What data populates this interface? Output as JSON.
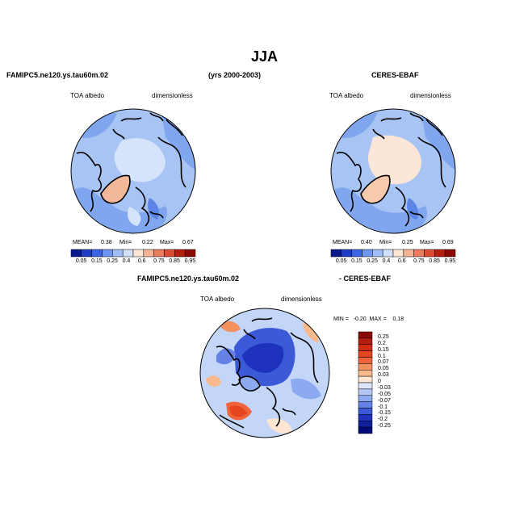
{
  "title": "JJA",
  "panels": [
    {
      "title_left": "FAMIPC5.ne120.ys.tau60m.02",
      "title_center": "(yrs 2000-2003)",
      "field": "TOA albedo",
      "units": "dimensionless",
      "stats": {
        "mean_label": "MEAN=",
        "mean": "0.38",
        "min_label": "Min=",
        "min": "0.22",
        "max_label": "Max=",
        "max": "0.67"
      }
    },
    {
      "title_right": "CERES-EBAF",
      "field": "TOA albedo",
      "units": "dimensionless",
      "stats": {
        "mean_label": "MEAN=",
        "mean": "0.40",
        "min_label": "Min=",
        "min": "0.25",
        "max_label": "Max=",
        "max": "0.69"
      }
    },
    {
      "title_left": "FAMIPC5.ne120.ys.tau60m.02",
      "title_right": "- CERES-EBAF",
      "field": "TOA albedo",
      "units": "dimensionless",
      "stats_text": "MIN =   -0.20  MAX =    0.18"
    }
  ],
  "colorbar_top": {
    "labels": [
      "0.05",
      "0.15",
      "0.25",
      "0.4",
      "0.6",
      "0.75",
      "0.85",
      "0.95"
    ],
    "colors": [
      "#0a1a8c",
      "#1e3cc8",
      "#3c64e6",
      "#6e96f0",
      "#a0bef5",
      "#d2e1fa",
      "#fbe6d7",
      "#f5b496",
      "#eb7d5f",
      "#dc4b32",
      "#b41e0f",
      "#8c0a05"
    ]
  },
  "colorbar_diff": {
    "labels": [
      "0.25",
      "0.2",
      "0.15",
      "0.1",
      "0.07",
      "0.05",
      "0.03",
      "0",
      "-0.03",
      "-0.05",
      "-0.07",
      "-0.1",
      "-0.15",
      "-0.2",
      "-0.25"
    ],
    "colors": [
      "#8c0a05",
      "#b41e0f",
      "#d22d14",
      "#e6461e",
      "#f0643c",
      "#f5915f",
      "#fab98c",
      "#fde6d2",
      "#dce6fa",
      "#b4c8f5",
      "#8caaf0",
      "#6482e6",
      "#3c5ad7",
      "#1e32be",
      "#0f1e9b",
      "#000a78"
    ]
  }
}
